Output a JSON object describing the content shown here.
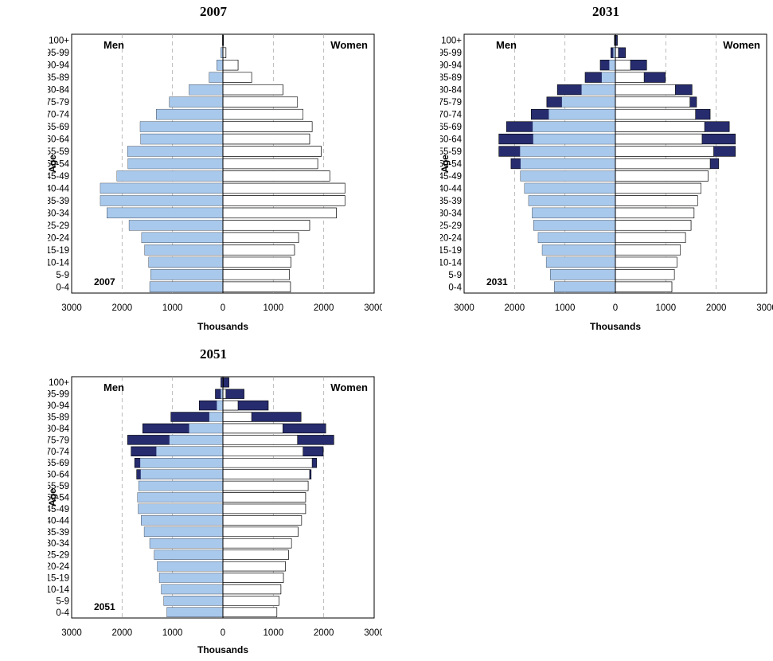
{
  "colors": {
    "men_base": "#a8c8ec",
    "women_base": "#ffffff",
    "growth": "#262c6e",
    "outline": "#000000",
    "grid": "#aaaaaa"
  },
  "chart_data": [
    {
      "type": "bar",
      "title": "2007",
      "inner_label": "2007",
      "left_label": "Men",
      "right_label": "Women",
      "xlabel": "Thousands",
      "ylabel": "Age",
      "xlim": [
        -3000,
        3000
      ],
      "xticks": [
        -3000,
        -2000,
        -1000,
        0,
        1000,
        2000,
        3000
      ],
      "xtick_labels": [
        "3000",
        "2000",
        "1000",
        "0",
        "1000",
        "2000",
        "3000"
      ],
      "grid": "vertical dashed",
      "categories": [
        "0-4",
        "5-9",
        "10-14",
        "15-19",
        "20-24",
        "25-29",
        "30-34",
        "35-39",
        "40-44",
        "45-49",
        "50-54",
        "55-59",
        "60-64",
        "65-69",
        "70-74",
        "75-79",
        "80-84",
        "85-89",
        "90-94",
        "95-99",
        "100+"
      ],
      "series": [
        {
          "name": "Men",
          "values": [
            1450,
            1430,
            1470,
            1550,
            1610,
            1860,
            2300,
            2430,
            2430,
            2100,
            1880,
            1890,
            1630,
            1640,
            1320,
            1060,
            670,
            270,
            120,
            40,
            10
          ]
        },
        {
          "name": "Women",
          "values": [
            1340,
            1320,
            1350,
            1420,
            1500,
            1720,
            2250,
            2420,
            2420,
            2120,
            1880,
            1950,
            1720,
            1770,
            1590,
            1480,
            1190,
            570,
            300,
            60,
            10
          ]
        }
      ]
    },
    {
      "type": "bar",
      "title": "2031",
      "inner_label": "2031",
      "left_label": "Men",
      "right_label": "Women",
      "xlabel": "Thousands",
      "ylabel": "Age",
      "xlim": [
        -3000,
        3000
      ],
      "xticks": [
        -3000,
        -2000,
        -1000,
        0,
        1000,
        2000,
        3000
      ],
      "xtick_labels": [
        "3000",
        "2000",
        "1000",
        "0",
        "1000",
        "2000",
        "3000"
      ],
      "grid": "vertical dashed",
      "categories": [
        "0-4",
        "5-9",
        "10-14",
        "15-19",
        "20-24",
        "25-29",
        "30-34",
        "35-39",
        "40-44",
        "45-49",
        "50-54",
        "55-59",
        "60-64",
        "65-69",
        "70-74",
        "75-79",
        "80-84",
        "85-89",
        "90-94",
        "95-99",
        "100+"
      ],
      "series": [
        {
          "name": "Men",
          "values": [
            1210,
            1290,
            1370,
            1450,
            1530,
            1620,
            1650,
            1720,
            1800,
            1880,
            2070,
            2310,
            2310,
            2160,
            1670,
            1360,
            1150,
            600,
            300,
            90,
            20
          ]
        },
        {
          "name": "Women",
          "values": [
            1120,
            1170,
            1220,
            1290,
            1390,
            1500,
            1560,
            1630,
            1700,
            1840,
            2050,
            2380,
            2380,
            2260,
            1880,
            1610,
            1520,
            990,
            620,
            200,
            40
          ]
        }
      ]
    },
    {
      "type": "bar",
      "title": "2051",
      "inner_label": "2051",
      "left_label": "Men",
      "right_label": "Women",
      "xlabel": "Thousands",
      "ylabel": "Age",
      "xlim": [
        -3000,
        3000
      ],
      "xticks": [
        -3000,
        -2000,
        -1000,
        0,
        1000,
        2000,
        3000
      ],
      "xtick_labels": [
        "3000",
        "2000",
        "1000",
        "0",
        "1000",
        "2000",
        "3000"
      ],
      "grid": "vertical dashed",
      "categories": [
        "0-4",
        "5-9",
        "10-14",
        "15-19",
        "20-24",
        "25-29",
        "30-34",
        "35-39",
        "40-44",
        "45-49",
        "50-54",
        "55-59",
        "60-64",
        "65-69",
        "70-74",
        "75-79",
        "80-84",
        "85-89",
        "90-94",
        "95-99",
        "100+"
      ],
      "series": [
        {
          "name": "Men",
          "values": [
            1110,
            1170,
            1220,
            1260,
            1300,
            1360,
            1450,
            1560,
            1620,
            1680,
            1690,
            1670,
            1710,
            1750,
            1820,
            1890,
            1590,
            1030,
            470,
            150,
            40
          ]
        },
        {
          "name": "Women",
          "values": [
            1070,
            1110,
            1150,
            1200,
            1240,
            1300,
            1360,
            1490,
            1560,
            1640,
            1640,
            1690,
            1750,
            1860,
            1990,
            2200,
            2040,
            1550,
            900,
            420,
            120
          ]
        }
      ]
    }
  ]
}
